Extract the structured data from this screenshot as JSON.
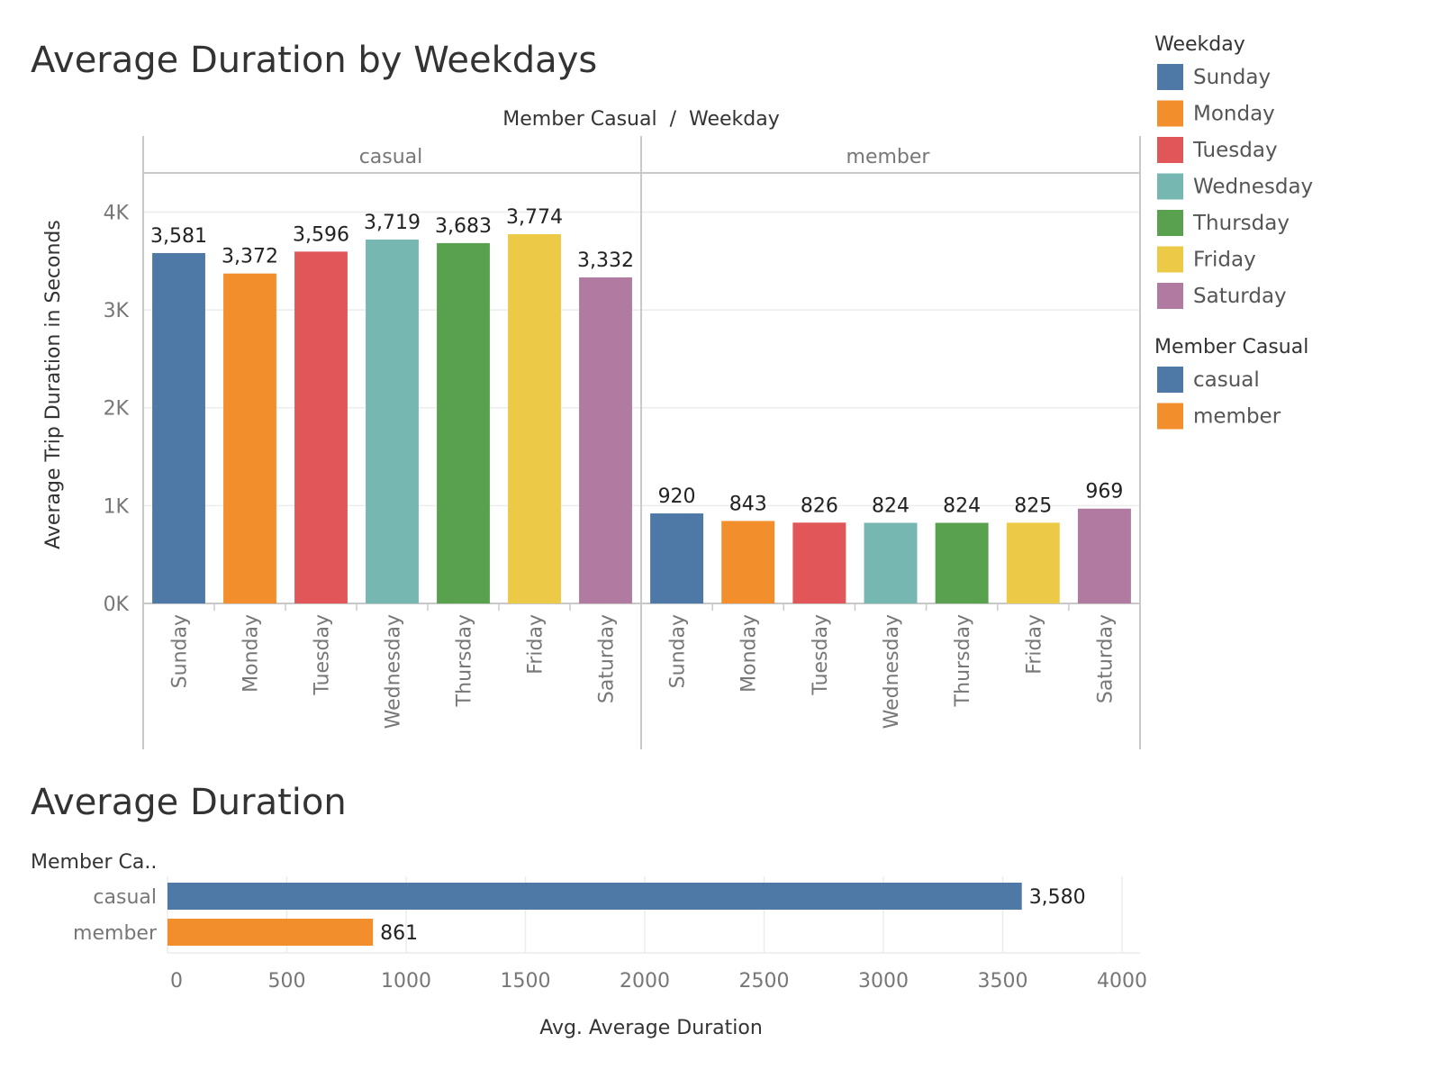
{
  "colors": {
    "Sunday": "#4e79a7",
    "Monday": "#f28e2b",
    "Tuesday": "#e15759",
    "Wednesday": "#76b7b2",
    "Thursday": "#59a14f",
    "Friday": "#edc948",
    "Saturday": "#b07aa1",
    "casual": "#4e79a7",
    "member": "#f28e2b"
  },
  "chart_data": [
    {
      "type": "bar",
      "title": "Average Duration by Weekdays",
      "header": "Member Casual  /  Weekday",
      "ylabel": "Average Trip Duration in Seconds",
      "ylim": [
        0,
        4400
      ],
      "yticks": [
        "0K",
        "1K",
        "2K",
        "3K",
        "4K"
      ],
      "grid": true,
      "panes": [
        {
          "name": "casual",
          "categories": [
            "Sunday",
            "Monday",
            "Tuesday",
            "Wednesday",
            "Thursday",
            "Friday",
            "Saturday"
          ],
          "values": [
            3581,
            3372,
            3596,
            3719,
            3683,
            3774,
            3332
          ],
          "labels": [
            "3,581",
            "3,372",
            "3,596",
            "3,719",
            "3,683",
            "3,774",
            "3,332"
          ]
        },
        {
          "name": "member",
          "categories": [
            "Sunday",
            "Monday",
            "Tuesday",
            "Wednesday",
            "Thursday",
            "Friday",
            "Saturday"
          ],
          "values": [
            920,
            843,
            826,
            824,
            824,
            825,
            969
          ],
          "labels": [
            "920",
            "843",
            "826",
            "824",
            "824",
            "825",
            "969"
          ]
        }
      ]
    },
    {
      "type": "bar",
      "orientation": "horizontal",
      "title": "Average Duration",
      "row_header": "Member Ca..",
      "categories": [
        "casual",
        "member"
      ],
      "values": [
        3580,
        861
      ],
      "labels": [
        "3,580",
        "861"
      ],
      "xlabel": "Avg. Average Duration",
      "xlim": [
        0,
        4000
      ],
      "xticks": [
        "0",
        "500",
        "1000",
        "1500",
        "2000",
        "2500",
        "3000",
        "3500",
        "4000"
      ],
      "grid": true
    }
  ],
  "legends": [
    {
      "title": "Weekday",
      "items": [
        "Sunday",
        "Monday",
        "Tuesday",
        "Wednesday",
        "Thursday",
        "Friday",
        "Saturday"
      ]
    },
    {
      "title": "Member Casual",
      "items": [
        "casual",
        "member"
      ]
    }
  ]
}
